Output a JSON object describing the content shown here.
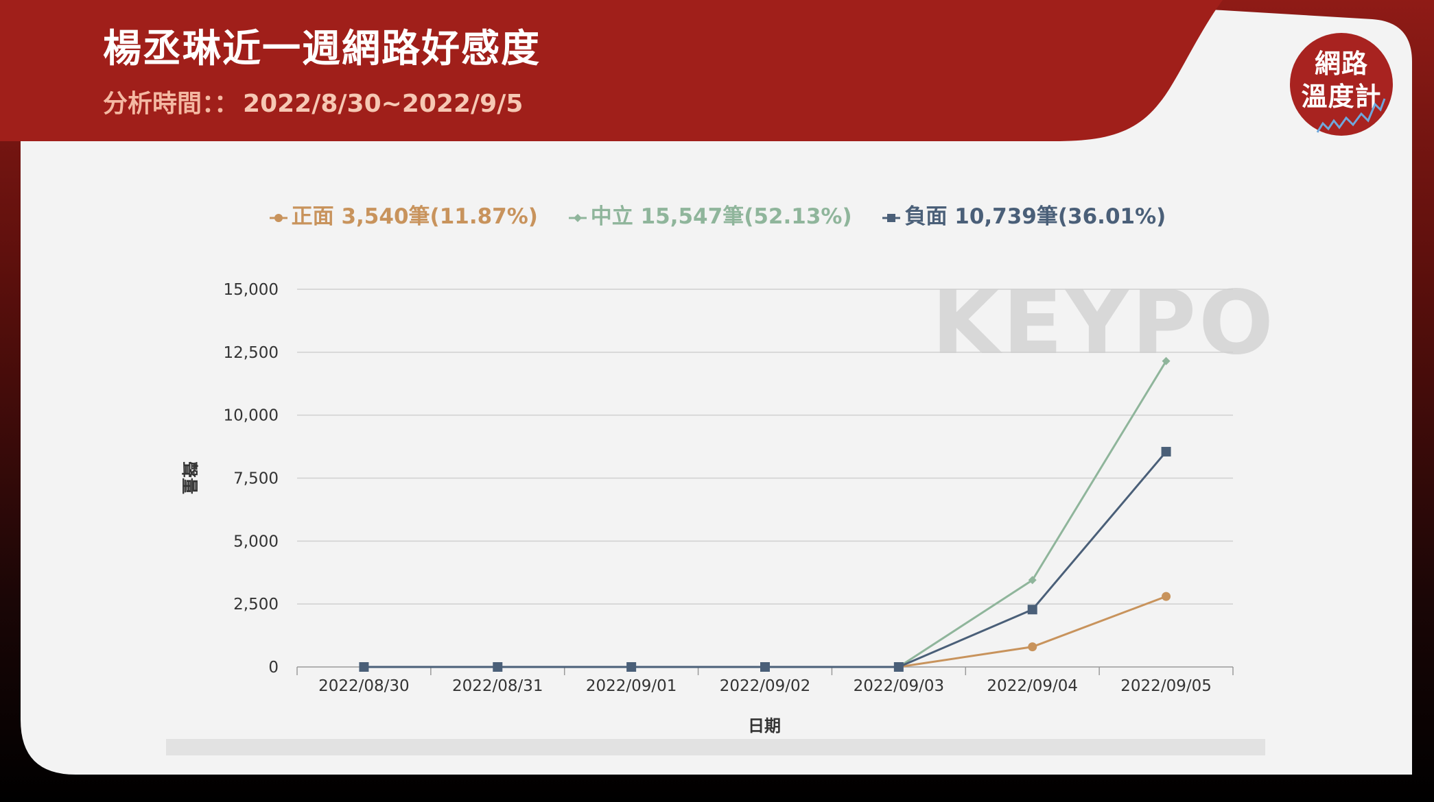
{
  "header": {
    "title": "楊丞琳近一週網路好感度",
    "period_label": "分析時間：：",
    "period_value": "2022/8/30~2022/9/5"
  },
  "badge": {
    "line1": "網路",
    "line2": "溫度計"
  },
  "watermark": {
    "text": "KEYPO"
  },
  "colors": {
    "positive": "#c8935c",
    "neutral": "#8fb59b",
    "negative": "#4a5f78",
    "header_red": "#a01f1a",
    "panel": "#f3f3f3"
  },
  "legend": [
    {
      "label": "正面 3,540筆(11.87%)",
      "color": "#c8935c",
      "marker": "circle"
    },
    {
      "label": "中立 15,547筆(52.13%)",
      "color": "#8fb59b",
      "marker": "diamond"
    },
    {
      "label": "負面 10,739筆(36.01%)",
      "color": "#4a5f78",
      "marker": "square"
    }
  ],
  "chart_data": {
    "type": "line",
    "xlabel": "日期",
    "ylabel": "聲量",
    "ylim": [
      0,
      15000
    ],
    "yticks": [
      0,
      2500,
      5000,
      7500,
      10000,
      12500,
      15000
    ],
    "ytick_labels": [
      "0",
      "2,500",
      "5,000",
      "7,500",
      "10,000",
      "12,500",
      "15,000"
    ],
    "categories": [
      "2022/08/30",
      "2022/08/31",
      "2022/09/01",
      "2022/09/02",
      "2022/09/03",
      "2022/09/04",
      "2022/09/05"
    ],
    "grid": true,
    "legend_position": "top",
    "series": [
      {
        "name": "正面",
        "color": "#c8935c",
        "marker": "circle",
        "values": [
          0,
          0,
          0,
          0,
          0,
          800,
          2800
        ]
      },
      {
        "name": "中立",
        "color": "#8fb59b",
        "marker": "diamond",
        "values": [
          0,
          0,
          0,
          0,
          0,
          3450,
          12150
        ]
      },
      {
        "name": "負面",
        "color": "#4a5f78",
        "marker": "square",
        "values": [
          0,
          0,
          0,
          0,
          0,
          2280,
          8550
        ]
      }
    ]
  }
}
